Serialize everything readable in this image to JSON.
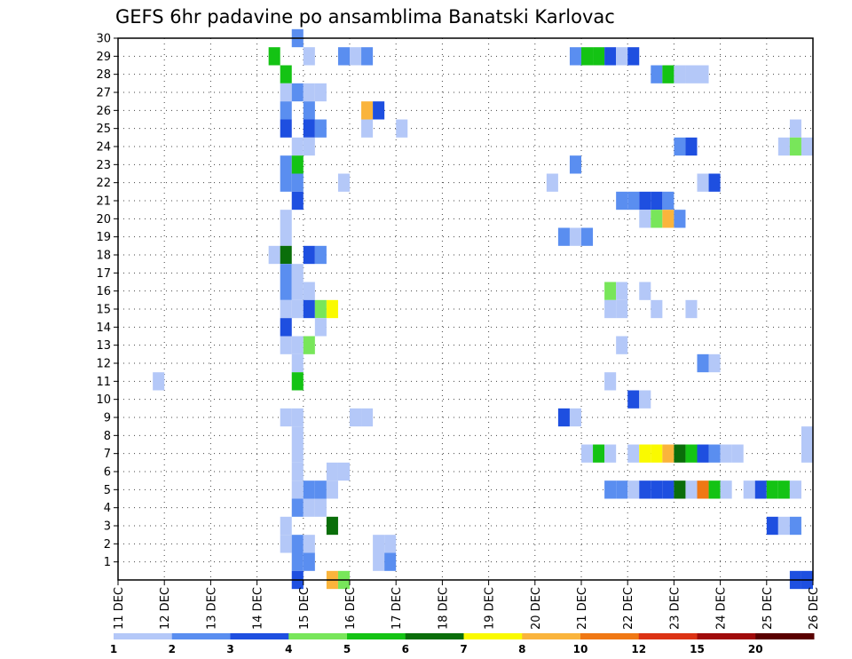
{
  "chart_data": {
    "type": "heatmap",
    "title": "GEFS 6hr padavine po ansamblima Banatski Karlovac",
    "x_tick_labels": [
      "11 DEC",
      "12 DEC",
      "13 DEC",
      "14 DEC",
      "15 DEC",
      "16 DEC",
      "17 DEC",
      "18 DEC",
      "19 DEC",
      "20 DEC",
      "21 DEC",
      "22 DEC",
      "23 DEC",
      "24 DEC",
      "25 DEC",
      "26 DEC"
    ],
    "y_tick_labels": [
      "1",
      "2",
      "3",
      "4",
      "5",
      "6",
      "7",
      "8",
      "9",
      "10",
      "11",
      "12",
      "13",
      "14",
      "15",
      "16",
      "17",
      "18",
      "19",
      "20",
      "21",
      "22",
      "23",
      "24",
      "25",
      "26",
      "27",
      "28",
      "29",
      "30"
    ],
    "xlim": [
      0,
      60
    ],
    "ylim": [
      0,
      30
    ],
    "x_unit_note": "6-hour steps since 11 DEC 00Z",
    "grid": true,
    "legend": {
      "position": "bottom",
      "boundaries": [
        "1",
        "2",
        "3",
        "4",
        "5",
        "6",
        "7",
        "8",
        "10",
        "12",
        "15",
        "20"
      ],
      "colors": [
        "#b4c8f8",
        "#5a8ef0",
        "#1e4fe0",
        "#78e65a",
        "#14c314",
        "#0a6e0a",
        "#fafa00",
        "#fab43c",
        "#f07814",
        "#dc3214",
        "#a00a0a",
        "#5a0000"
      ]
    },
    "cells": [
      [
        15.5,
        30,
        1
      ],
      [
        13.5,
        29,
        4
      ],
      [
        16.5,
        29,
        0
      ],
      [
        19.5,
        29,
        1
      ],
      [
        20.5,
        29,
        0
      ],
      [
        21.5,
        29,
        1
      ],
      [
        39.5,
        29,
        1
      ],
      [
        40.5,
        29,
        4
      ],
      [
        41.5,
        29,
        4
      ],
      [
        42.5,
        29,
        2
      ],
      [
        43.5,
        29,
        0
      ],
      [
        44.5,
        29,
        2
      ],
      [
        14.5,
        28,
        4
      ],
      [
        46.5,
        28,
        1
      ],
      [
        47.5,
        28,
        4
      ],
      [
        48.5,
        28,
        0
      ],
      [
        49.5,
        28,
        0
      ],
      [
        50.5,
        28,
        0
      ],
      [
        14.5,
        27,
        0
      ],
      [
        15.5,
        27,
        1
      ],
      [
        16.5,
        27,
        0
      ],
      [
        17.5,
        27,
        0
      ],
      [
        14.5,
        26,
        1
      ],
      [
        16.5,
        26,
        1
      ],
      [
        21.5,
        26,
        7
      ],
      [
        22.5,
        26,
        2
      ],
      [
        14.5,
        25,
        2
      ],
      [
        16.5,
        25,
        2
      ],
      [
        17.5,
        25,
        1
      ],
      [
        21.5,
        25,
        0
      ],
      [
        24.5,
        25,
        0
      ],
      [
        58.5,
        25,
        0
      ],
      [
        15.5,
        24,
        0
      ],
      [
        16.5,
        24,
        0
      ],
      [
        48.5,
        24,
        1
      ],
      [
        49.5,
        24,
        2
      ],
      [
        57.5,
        24,
        0
      ],
      [
        58.5,
        24,
        3
      ],
      [
        59.5,
        24,
        0
      ],
      [
        14.5,
        23,
        1
      ],
      [
        15.5,
        23,
        4
      ],
      [
        39.5,
        23,
        1
      ],
      [
        14.5,
        22,
        1
      ],
      [
        15.5,
        22,
        1
      ],
      [
        19.5,
        22,
        0
      ],
      [
        37.5,
        22,
        0
      ],
      [
        50.5,
        22,
        0
      ],
      [
        51.5,
        22,
        2
      ],
      [
        15.5,
        21,
        2
      ],
      [
        43.5,
        21,
        1
      ],
      [
        44.5,
        21,
        1
      ],
      [
        45.5,
        21,
        2
      ],
      [
        46.5,
        21,
        2
      ],
      [
        47.5,
        21,
        1
      ],
      [
        14.5,
        20,
        0
      ],
      [
        45.5,
        20,
        0
      ],
      [
        46.5,
        20,
        3
      ],
      [
        47.5,
        20,
        7
      ],
      [
        48.5,
        20,
        1
      ],
      [
        14.5,
        19,
        0
      ],
      [
        38.5,
        19,
        1
      ],
      [
        39.5,
        19,
        0
      ],
      [
        40.5,
        19,
        1
      ],
      [
        13.5,
        18,
        0
      ],
      [
        14.5,
        18,
        5
      ],
      [
        16.5,
        18,
        2
      ],
      [
        17.5,
        18,
        1
      ],
      [
        14.5,
        17,
        1
      ],
      [
        15.5,
        17,
        0
      ],
      [
        14.5,
        16,
        1
      ],
      [
        15.5,
        16,
        0
      ],
      [
        16.5,
        16,
        0
      ],
      [
        42.5,
        16,
        3
      ],
      [
        43.5,
        16,
        0
      ],
      [
        45.5,
        16,
        0
      ],
      [
        14.5,
        15,
        0
      ],
      [
        15.5,
        15,
        0
      ],
      [
        16.5,
        15,
        2
      ],
      [
        17.5,
        15,
        3
      ],
      [
        18.5,
        15,
        6
      ],
      [
        42.5,
        15,
        0
      ],
      [
        43.5,
        15,
        0
      ],
      [
        46.5,
        15,
        0
      ],
      [
        49.5,
        15,
        0
      ],
      [
        14.5,
        14,
        2
      ],
      [
        17.5,
        14,
        0
      ],
      [
        14.5,
        13,
        0
      ],
      [
        15.5,
        13,
        0
      ],
      [
        16.5,
        13,
        3
      ],
      [
        43.5,
        13,
        0
      ],
      [
        15.5,
        12,
        0
      ],
      [
        50.5,
        12,
        1
      ],
      [
        51.5,
        12,
        0
      ],
      [
        3.5,
        11,
        0
      ],
      [
        15.5,
        11,
        4
      ],
      [
        42.5,
        11,
        0
      ],
      [
        44.5,
        10,
        2
      ],
      [
        45.5,
        10,
        0
      ],
      [
        14.5,
        9,
        0
      ],
      [
        15.5,
        9,
        0
      ],
      [
        20.5,
        9,
        0
      ],
      [
        21.5,
        9,
        0
      ],
      [
        38.5,
        9,
        2
      ],
      [
        39.5,
        9,
        0
      ],
      [
        15.5,
        8,
        0
      ],
      [
        59.5,
        8,
        0
      ],
      [
        15.5,
        7,
        0
      ],
      [
        40.5,
        7,
        0
      ],
      [
        41.5,
        7,
        4
      ],
      [
        42.5,
        7,
        0
      ],
      [
        44.5,
        7,
        0
      ],
      [
        45.5,
        7,
        6
      ],
      [
        46.5,
        7,
        6
      ],
      [
        47.5,
        7,
        7
      ],
      [
        48.5,
        7,
        5
      ],
      [
        49.5,
        7,
        4
      ],
      [
        50.5,
        7,
        2
      ],
      [
        51.5,
        7,
        1
      ],
      [
        52.5,
        7,
        0
      ],
      [
        53.5,
        7,
        0
      ],
      [
        59.5,
        7,
        0
      ],
      [
        15.5,
        6,
        0
      ],
      [
        18.5,
        6,
        0
      ],
      [
        19.5,
        6,
        0
      ],
      [
        15.5,
        5,
        0
      ],
      [
        16.5,
        5,
        1
      ],
      [
        17.5,
        5,
        1
      ],
      [
        18.5,
        5,
        0
      ],
      [
        42.5,
        5,
        1
      ],
      [
        43.5,
        5,
        1
      ],
      [
        44.5,
        5,
        0
      ],
      [
        45.5,
        5,
        2
      ],
      [
        46.5,
        5,
        2
      ],
      [
        47.5,
        5,
        2
      ],
      [
        48.5,
        5,
        5
      ],
      [
        49.5,
        5,
        0
      ],
      [
        50.5,
        5,
        8
      ],
      [
        51.5,
        5,
        4
      ],
      [
        52.5,
        5,
        0
      ],
      [
        54.5,
        5,
        0
      ],
      [
        55.5,
        5,
        2
      ],
      [
        56.5,
        5,
        4
      ],
      [
        57.5,
        5,
        4
      ],
      [
        58.5,
        5,
        0
      ],
      [
        15.5,
        4,
        1
      ],
      [
        16.5,
        4,
        0
      ],
      [
        17.5,
        4,
        0
      ],
      [
        14.5,
        3,
        0
      ],
      [
        18.5,
        3,
        5
      ],
      [
        56.5,
        3,
        2
      ],
      [
        57.5,
        3,
        0
      ],
      [
        58.5,
        3,
        1
      ],
      [
        14.5,
        2,
        0
      ],
      [
        15.5,
        2,
        1
      ],
      [
        16.5,
        2,
        0
      ],
      [
        22.5,
        2,
        0
      ],
      [
        23.5,
        2,
        0
      ],
      [
        15.5,
        1,
        1
      ],
      [
        16.5,
        1,
        1
      ],
      [
        22.5,
        1,
        0
      ],
      [
        23.5,
        1,
        1
      ],
      [
        15.5,
        0,
        2
      ],
      [
        18.5,
        0,
        7
      ],
      [
        19.5,
        0,
        3
      ],
      [
        58.5,
        0,
        2
      ],
      [
        59.5,
        0,
        2
      ]
    ]
  }
}
